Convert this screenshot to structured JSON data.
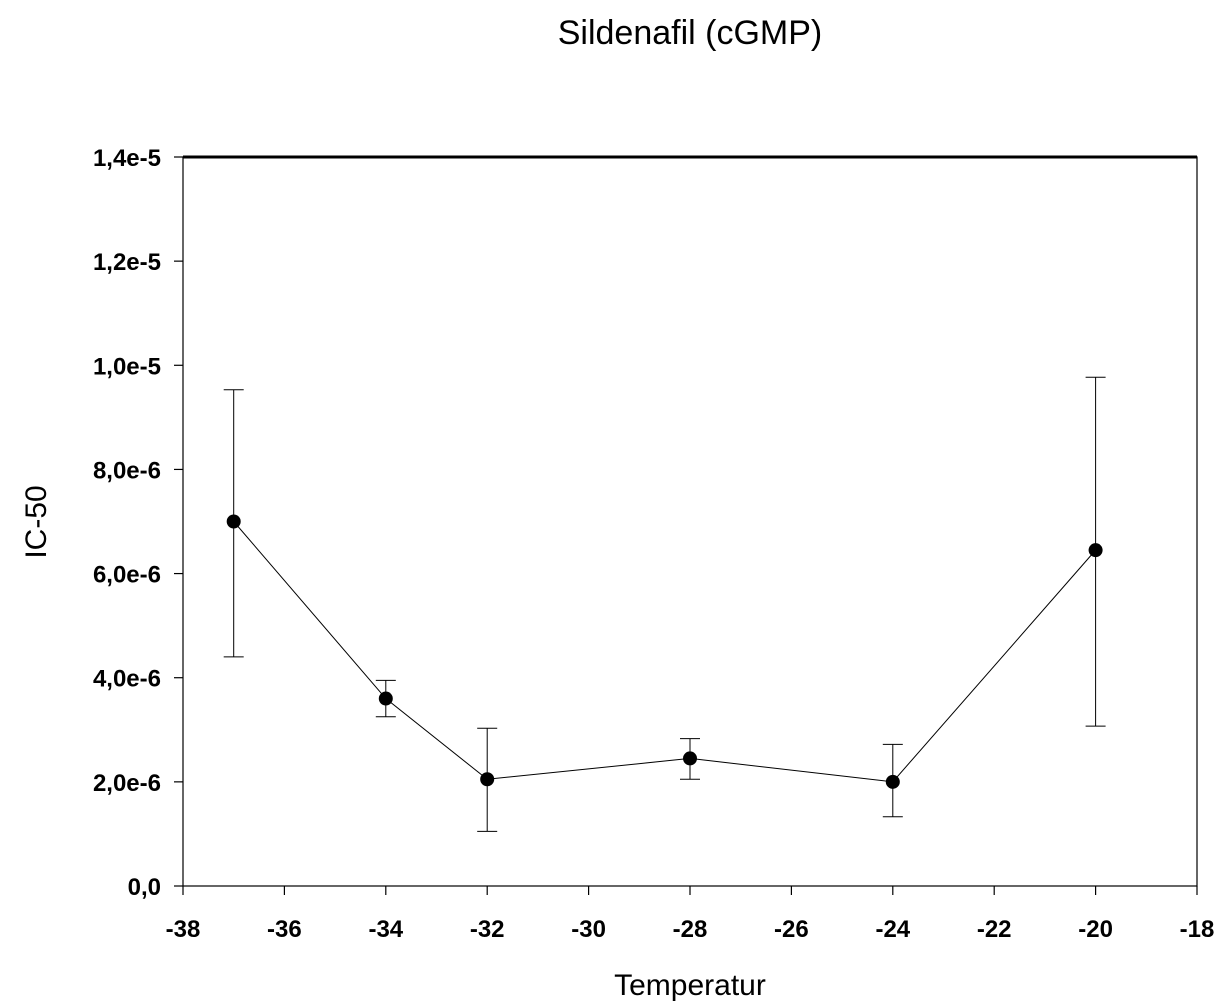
{
  "chart_data": {
    "type": "scatter",
    "title": "Sildenafil (cGMP)",
    "xlabel": "Temperatur",
    "ylabel": "IC-50",
    "xlim": [
      -38,
      -18
    ],
    "ylim": [
      0,
      1.4e-05
    ],
    "x_ticks": [
      -38,
      -36,
      -34,
      -32,
      -30,
      -28,
      -26,
      -24,
      -22,
      -20,
      -18
    ],
    "x_tick_labels": [
      "-38",
      "-36",
      "-34",
      "-32",
      "-30",
      "-28",
      "-26",
      "-24",
      "-22",
      "-20",
      "-18"
    ],
    "y_ticks": [
      0,
      2e-06,
      4e-06,
      6e-06,
      8e-06,
      1e-05,
      1.2e-05,
      1.4e-05
    ],
    "y_tick_labels": [
      "0,0",
      "2,0e-6",
      "4,0e-6",
      "6,0e-6",
      "8,0e-6",
      "1,0e-5",
      "1,2e-5",
      "1,4e-5"
    ],
    "grid": false,
    "series": [
      {
        "x": [
          -37,
          -34,
          -32,
          -28,
          -24,
          -20
        ],
        "y": [
          7e-06,
          3.6e-06,
          2.05e-06,
          2.45e-06,
          2e-06,
          6.45e-06
        ],
        "error_low": [
          4.4e-06,
          3.25e-06,
          1.05e-06,
          2.05e-06,
          1.33e-06,
          3.07e-06
        ],
        "error_high": [
          9.53e-06,
          3.95e-06,
          3.03e-06,
          2.83e-06,
          2.72e-06,
          9.77e-06
        ],
        "color": "#000000"
      }
    ]
  }
}
